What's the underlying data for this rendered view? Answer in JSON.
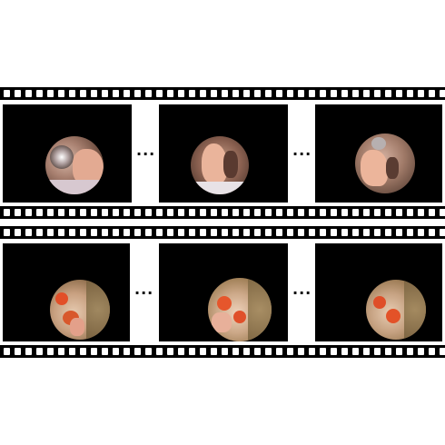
{
  "separator": "...",
  "strips": [
    {
      "frames": [
        {
          "scene": "sink-hand-reaching",
          "rim": "#8a6a52",
          "fill": "#c9a08a",
          "skin": "#e0a890"
        },
        {
          "scene": "hands-washing",
          "rim": "#6d4a3a",
          "fill": "#b88f7a",
          "skin": "#e9b39a"
        },
        {
          "scene": "hand-at-faucet",
          "rim": "#7b5a48",
          "fill": "#c59c86",
          "skin": "#ebb49b"
        }
      ]
    },
    {
      "frames": [
        {
          "scene": "bowl-tomatoes",
          "rim": "#9c7a50",
          "fill": "#d9b79a",
          "accent": "#e0502a"
        },
        {
          "scene": "bowl-tomatoes",
          "rim": "#a07e55",
          "fill": "#e2c2a6",
          "accent": "#e6562c"
        },
        {
          "scene": "bowl-tomatoes",
          "rim": "#9a7850",
          "fill": "#dcbc9f",
          "accent": "#df4e28"
        }
      ]
    }
  ]
}
